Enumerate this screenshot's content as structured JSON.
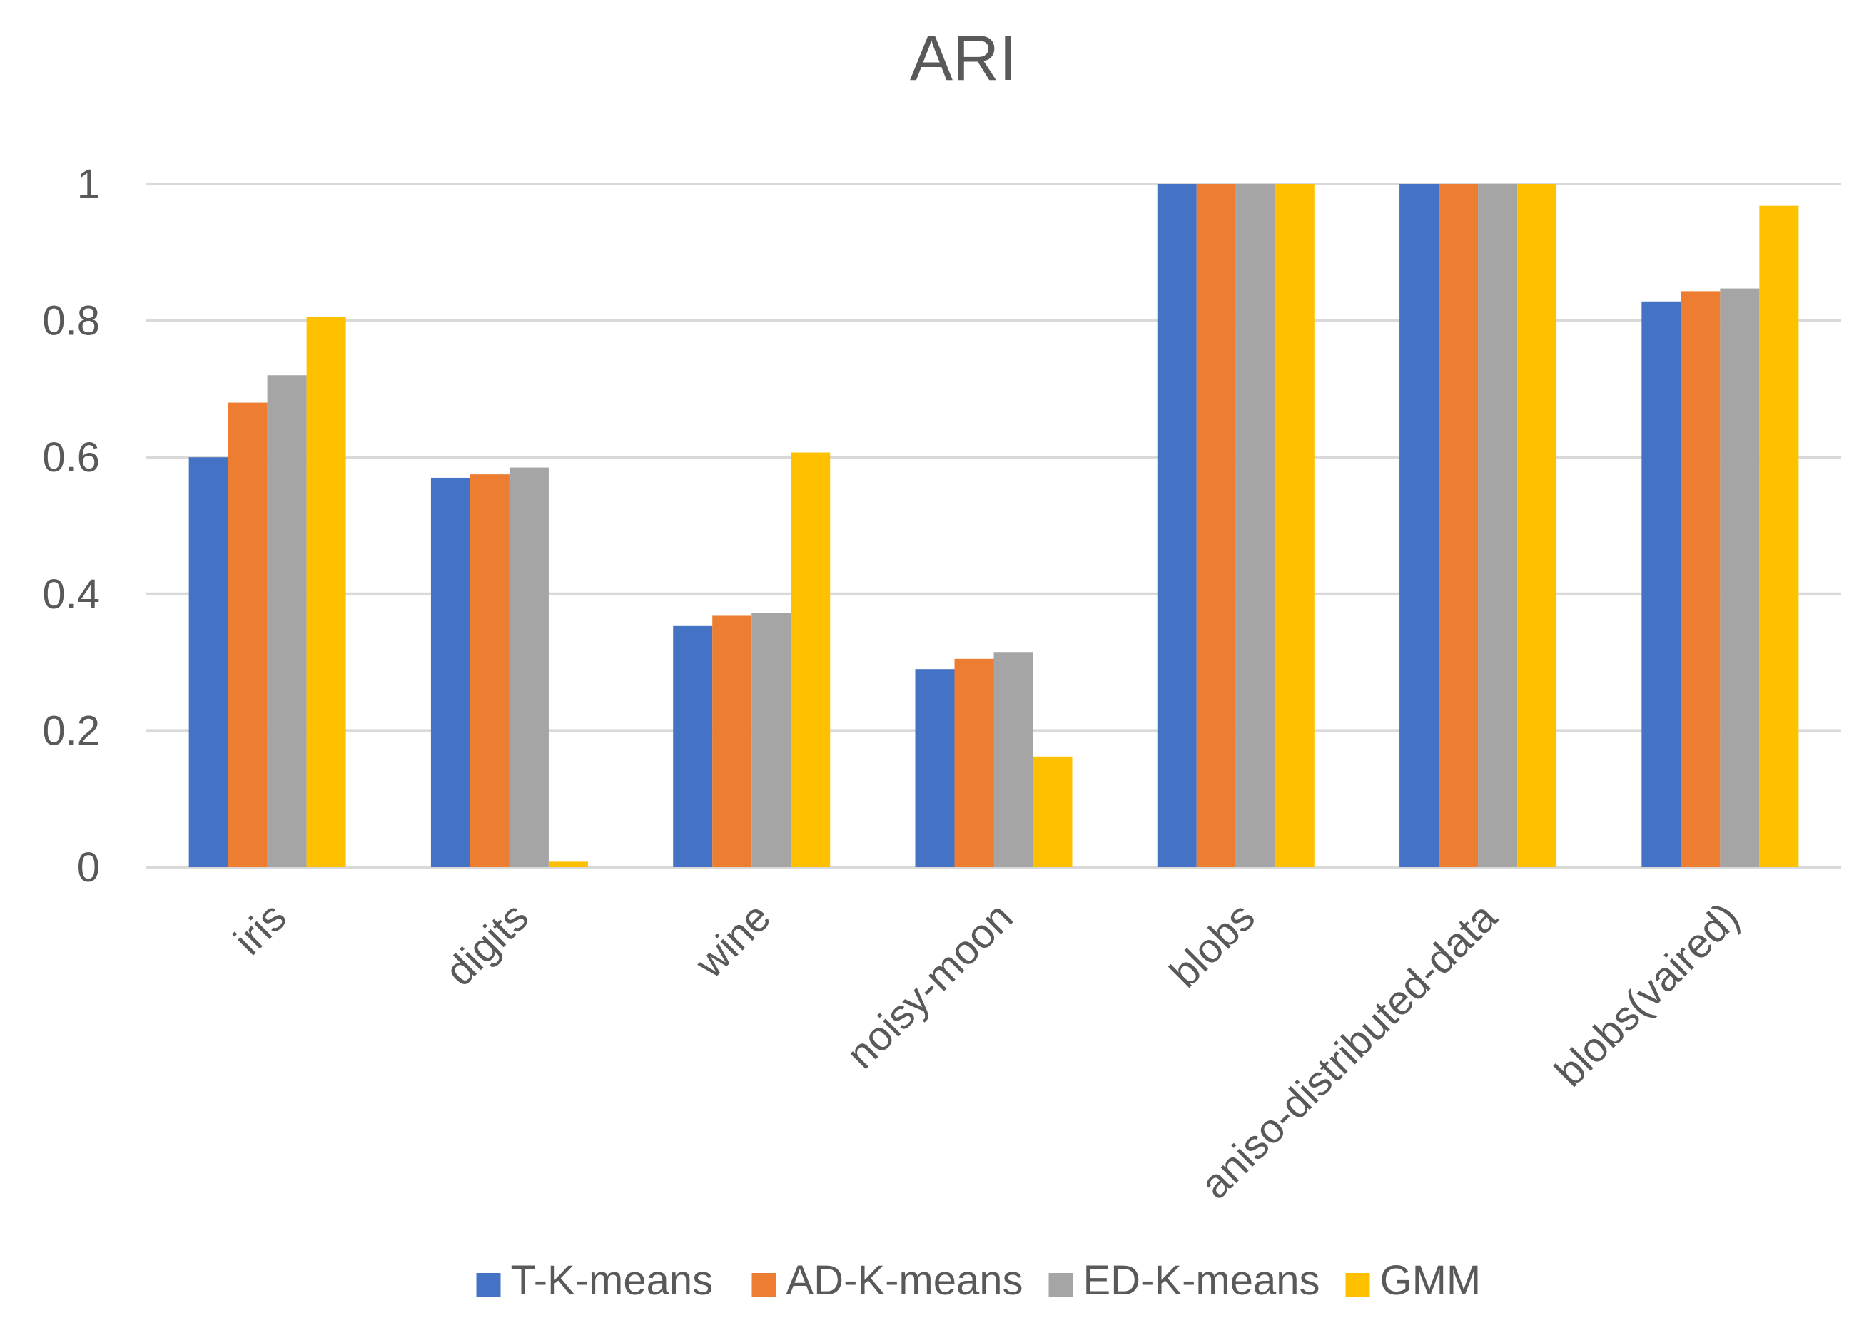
{
  "chart_data": {
    "type": "bar",
    "title": "ARI",
    "xlabel": "",
    "ylabel": "",
    "ylim": [
      0,
      1
    ],
    "yticks": [
      0,
      0.2,
      0.4,
      0.6,
      0.8,
      1
    ],
    "ytick_labels": [
      "0",
      "0.2",
      "0.4",
      "0.6",
      "0.8",
      "1"
    ],
    "grid": true,
    "legend_position": "bottom",
    "categories": [
      "iris",
      "digits",
      "wine",
      "noisy-moon",
      "blobs",
      "aniso-distributed-data",
      "blobs(vaired)"
    ],
    "series": [
      {
        "name": "T-K-means",
        "color": "#4472c4",
        "values": [
          0.6,
          0.57,
          0.353,
          0.29,
          1.0,
          1.0,
          0.828
        ]
      },
      {
        "name": "AD-K-means",
        "color": "#ed7d31",
        "values": [
          0.68,
          0.575,
          0.368,
          0.305,
          1.0,
          1.0,
          0.843
        ]
      },
      {
        "name": "ED-K-means",
        "color": "#a5a5a5",
        "values": [
          0.72,
          0.585,
          0.372,
          0.315,
          1.0,
          1.0,
          0.847
        ]
      },
      {
        "name": "GMM",
        "color": "#ffc000",
        "values": [
          0.805,
          0.008,
          0.607,
          0.162,
          1.0,
          1.0,
          0.968
        ]
      }
    ]
  }
}
